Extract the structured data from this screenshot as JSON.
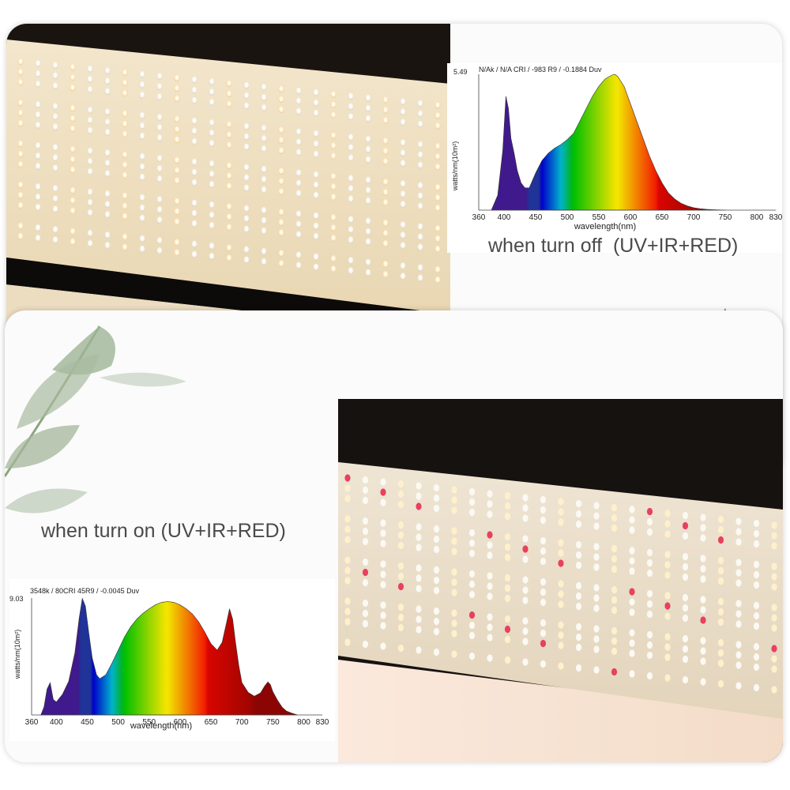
{
  "captions": {
    "off": "when turn off  (UV+IR+RED)",
    "on": "when turn on (UV+IR+RED)"
  },
  "colors": {
    "panel_board": "#e9dcc2",
    "led_warm": "#fff1cf",
    "led_red": "#e8405f",
    "housing": "#151210"
  },
  "chart_data": [
    {
      "type": "area",
      "title": "N/Ak / N/A CRI / -983 R9 / -0.1884 Duv",
      "xlabel": "wavelength(nm)",
      "ylabel": "watts/nm(10m²)",
      "ymax_label": "5.49",
      "xlim": [
        360,
        830
      ],
      "ylim": [
        0,
        5.49
      ],
      "x_ticks": [
        "360",
        "400",
        "450",
        "500",
        "550",
        "600",
        "650",
        "700",
        "750",
        "800",
        "830"
      ],
      "fill": "visible-spectrum gradient",
      "x": [
        380,
        390,
        398,
        403,
        407,
        411,
        416,
        421,
        427,
        433,
        440,
        450,
        460,
        470,
        480,
        490,
        500,
        510,
        520,
        530,
        540,
        550,
        560,
        570,
        575,
        580,
        590,
        600,
        610,
        620,
        630,
        640,
        650,
        660,
        670,
        680,
        690,
        700,
        710,
        720,
        730,
        740,
        750
      ],
      "values": [
        0,
        0.6,
        2.4,
        4.6,
        4.1,
        2.9,
        2.3,
        1.6,
        1.1,
        0.9,
        0.9,
        1.5,
        2.0,
        2.3,
        2.5,
        2.65,
        2.85,
        3.1,
        3.6,
        4.1,
        4.6,
        5.0,
        5.3,
        5.45,
        5.49,
        5.4,
        5.0,
        4.3,
        3.6,
        2.9,
        2.2,
        1.6,
        1.1,
        0.7,
        0.45,
        0.28,
        0.17,
        0.1,
        0.06,
        0.035,
        0.02,
        0.01,
        0
      ]
    },
    {
      "type": "area",
      "title": "3548k / 80CRI 45R9 / -0.0045 Duv",
      "xlabel": "wavelength(nm)",
      "ylabel": "watts/nm(10m²)",
      "ymax_label": "9.03",
      "xlim": [
        360,
        830
      ],
      "ylim": [
        0,
        9.03
      ],
      "x_ticks": [
        "360",
        "400",
        "450",
        "500",
        "550",
        "600",
        "650",
        "700",
        "750",
        "800",
        "830"
      ],
      "fill": "visible-spectrum gradient",
      "x": [
        375,
        380,
        385,
        390,
        395,
        400,
        410,
        420,
        430,
        437,
        442,
        447,
        452,
        458,
        465,
        470,
        480,
        490,
        500,
        510,
        520,
        530,
        540,
        550,
        560,
        570,
        580,
        590,
        600,
        610,
        620,
        630,
        640,
        650,
        660,
        668,
        675,
        680,
        685,
        690,
        695,
        700,
        710,
        720,
        730,
        737,
        742,
        746,
        750,
        758,
        765,
        772,
        780,
        790
      ],
      "values": [
        0,
        0.6,
        2.0,
        2.5,
        1.2,
        1.0,
        1.6,
        2.6,
        4.8,
        7.5,
        9.0,
        8.4,
        6.5,
        4.4,
        3.1,
        2.8,
        3.1,
        4.0,
        5.0,
        6.0,
        6.8,
        7.4,
        7.85,
        8.2,
        8.5,
        8.7,
        8.75,
        8.7,
        8.5,
        8.2,
        7.8,
        7.2,
        6.4,
        5.5,
        5.0,
        5.6,
        7.1,
        8.2,
        7.4,
        5.5,
        3.8,
        2.5,
        1.75,
        1.45,
        1.7,
        2.25,
        2.55,
        2.35,
        1.8,
        1.1,
        0.6,
        0.3,
        0.15,
        0
      ]
    }
  ]
}
